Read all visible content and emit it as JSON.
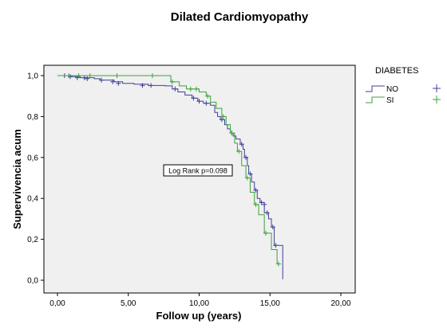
{
  "chart_data": {
    "type": "line",
    "subtype": "kaplan-meier",
    "title": "Dilated Cardiomyopathy",
    "xlabel": "Follow up (years)",
    "ylabel": "Supervivencia acum",
    "xlim": [
      0,
      20
    ],
    "ylim": [
      0,
      1
    ],
    "x_ticks": [
      "0,00",
      "5,00",
      "10,00",
      "15,00",
      "20,00"
    ],
    "y_ticks": [
      "0,0",
      "0,2",
      "0,4",
      "0,6",
      "0,8",
      "1,0"
    ],
    "legend": {
      "title": "DIABETES",
      "position": "right"
    },
    "annotation": "Log Rank p=0.098",
    "series": [
      {
        "name": "NO",
        "color": "#3f3f9c",
        "steps": [
          [
            0,
            1.0
          ],
          [
            0.9,
            0.995
          ],
          [
            1.6,
            0.99
          ],
          [
            2.6,
            0.985
          ],
          [
            3.0,
            0.978
          ],
          [
            4.0,
            0.97
          ],
          [
            4.6,
            0.962
          ],
          [
            5.4,
            0.958
          ],
          [
            6.4,
            0.952
          ],
          [
            7.6,
            0.95
          ],
          [
            8.1,
            0.935
          ],
          [
            8.5,
            0.92
          ],
          [
            9.0,
            0.905
          ],
          [
            9.5,
            0.89
          ],
          [
            9.9,
            0.875
          ],
          [
            10.3,
            0.865
          ],
          [
            10.8,
            0.855
          ],
          [
            11.1,
            0.82
          ],
          [
            11.3,
            0.8
          ],
          [
            11.5,
            0.785
          ],
          [
            11.8,
            0.76
          ],
          [
            12.0,
            0.74
          ],
          [
            12.2,
            0.72
          ],
          [
            12.4,
            0.705
          ],
          [
            12.6,
            0.69
          ],
          [
            12.9,
            0.665
          ],
          [
            13.1,
            0.64
          ],
          [
            13.2,
            0.6
          ],
          [
            13.4,
            0.56
          ],
          [
            13.5,
            0.52
          ],
          [
            13.7,
            0.48
          ],
          [
            13.9,
            0.44
          ],
          [
            14.1,
            0.4
          ],
          [
            14.3,
            0.38
          ],
          [
            14.6,
            0.33
          ],
          [
            14.9,
            0.3
          ],
          [
            15.1,
            0.26
          ],
          [
            15.3,
            0.17
          ],
          [
            15.9,
            0.005
          ]
        ],
        "end": 15.9,
        "censored": [
          [
            0.5,
            1.0
          ],
          [
            0.9,
            0.995
          ],
          [
            1.4,
            0.99
          ],
          [
            1.9,
            0.99
          ],
          [
            2.1,
            0.985
          ],
          [
            3.1,
            0.978
          ],
          [
            3.9,
            0.97
          ],
          [
            4.3,
            0.962
          ],
          [
            6.0,
            0.952
          ],
          [
            6.6,
            0.952
          ],
          [
            8.3,
            0.935
          ],
          [
            9.6,
            0.89
          ],
          [
            10.0,
            0.875
          ],
          [
            10.5,
            0.865
          ],
          [
            11.6,
            0.785
          ],
          [
            12.3,
            0.72
          ],
          [
            13.0,
            0.665
          ],
          [
            13.3,
            0.6
          ],
          [
            13.6,
            0.52
          ],
          [
            14.0,
            0.44
          ],
          [
            14.4,
            0.38
          ],
          [
            14.6,
            0.37
          ],
          [
            14.8,
            0.33
          ],
          [
            15.2,
            0.26
          ],
          [
            15.4,
            0.17
          ]
        ]
      },
      {
        "name": "SI",
        "color": "#3aa33a",
        "steps": [
          [
            0,
            1.0
          ],
          [
            8.0,
            0.97
          ],
          [
            8.6,
            0.95
          ],
          [
            9.1,
            0.935
          ],
          [
            10.0,
            0.92
          ],
          [
            10.5,
            0.9
          ],
          [
            10.8,
            0.87
          ],
          [
            11.2,
            0.84
          ],
          [
            11.6,
            0.8
          ],
          [
            11.9,
            0.76
          ],
          [
            12.2,
            0.72
          ],
          [
            12.5,
            0.67
          ],
          [
            12.7,
            0.63
          ],
          [
            13.0,
            0.56
          ],
          [
            13.3,
            0.5
          ],
          [
            13.6,
            0.43
          ],
          [
            13.9,
            0.37
          ],
          [
            14.2,
            0.32
          ],
          [
            14.6,
            0.23
          ],
          [
            15.1,
            0.15
          ],
          [
            15.5,
            0.08
          ]
        ],
        "end": 15.6,
        "censored": [
          [
            0.8,
            1.0
          ],
          [
            1.5,
            1.0
          ],
          [
            2.3,
            1.0
          ],
          [
            4.2,
            1.0
          ],
          [
            6.7,
            1.0
          ],
          [
            8.1,
            0.97
          ],
          [
            9.4,
            0.935
          ],
          [
            9.8,
            0.935
          ],
          [
            10.6,
            0.9
          ],
          [
            11.7,
            0.8
          ],
          [
            12.3,
            0.72
          ],
          [
            12.8,
            0.63
          ],
          [
            13.4,
            0.5
          ],
          [
            14.0,
            0.37
          ],
          [
            14.7,
            0.23
          ],
          [
            15.6,
            0.08
          ]
        ]
      }
    ]
  }
}
